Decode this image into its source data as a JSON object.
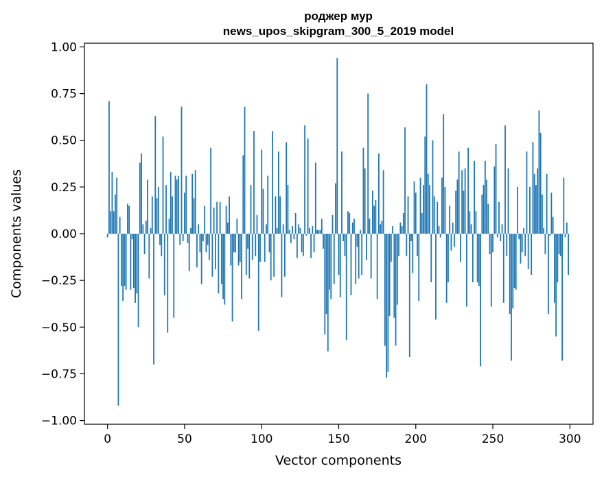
{
  "chart_data": {
    "type": "bar",
    "title": [
      "роджер мур",
      "news_upos_skipgram_300_5_2019 model"
    ],
    "xlabel": "Vector components",
    "ylabel": "Components values",
    "xlim": [
      -15,
      315
    ],
    "ylim": [
      -1.02,
      1.02
    ],
    "x_ticks": [
      0,
      50,
      100,
      150,
      200,
      250,
      300
    ],
    "x_tick_labels": [
      "0",
      "50",
      "100",
      "150",
      "200",
      "250",
      "300"
    ],
    "y_ticks": [
      1.0,
      0.75,
      0.5,
      0.25,
      0.0,
      -0.25,
      -0.5,
      -0.75,
      -1.0
    ],
    "y_tick_labels": [
      "1.00",
      "0.75",
      "0.50",
      "0.25",
      "0.00",
      "−0.25",
      "−0.50",
      "−0.75",
      "−1.00"
    ],
    "bar_color": "#1f77b4",
    "grid": false,
    "values": [
      -0.02,
      0.71,
      0.12,
      0.33,
      0.12,
      0.21,
      0.3,
      -0.92,
      0.09,
      -0.28,
      -0.36,
      -0.28,
      -0.3,
      0.16,
      0.15,
      -0.3,
      -0.03,
      -0.29,
      -0.37,
      -0.32,
      -0.5,
      0.38,
      0.43,
      0.05,
      -0.11,
      0.07,
      0.29,
      -0.24,
      0.03,
      0.2,
      -0.7,
      0.63,
      0.19,
      0.25,
      -0.06,
      -0.12,
      0.52,
      -0.33,
      0.26,
      -0.53,
      0.08,
      0.33,
      0.2,
      -0.45,
      0.31,
      0.29,
      0.31,
      -0.06,
      0.68,
      -0.04,
      0.22,
      0.31,
      -0.05,
      -0.2,
      0.03,
      0.32,
      0.19,
      0.34,
      -0.18,
      0.05,
      -0.1,
      -0.27,
      -0.04,
      0.15,
      -0.1,
      -0.06,
      -0.14,
      0.46,
      -0.23,
      0.14,
      -0.19,
      0.17,
      -0.32,
      0.17,
      -0.27,
      -0.35,
      -0.38,
      0.15,
      0.06,
      0.2,
      -0.17,
      -0.47,
      -0.1,
      -0.1,
      0.08,
      -0.17,
      -0.15,
      -0.35,
      0.42,
      0.68,
      -0.22,
      -0.08,
      -0.24,
      0.26,
      -0.14,
      0.55,
      -0.12,
      0.1,
      -0.52,
      -0.15,
      0.45,
      0.24,
      -0.15,
      0.05,
      0.31,
      -0.1,
      -0.25,
      0.55,
      -0.23,
      0.2,
      0.03,
      0.44,
      0.2,
      -0.34,
      0.05,
      -0.23,
      0.49,
      0.26,
      0.02,
      -0.05,
      0.04,
      -0.03,
      0.11,
      -0.13,
      0.05,
      0.03,
      -0.1,
      -0.12,
      0.58,
      -0.01,
      0.51,
      0.03,
      -0.13,
      0.04,
      -0.1,
      0.38,
      0.02,
      0.02,
      0.02,
      0.08,
      -0.08,
      -0.54,
      -0.43,
      -0.63,
      -0.3,
      -0.35,
      0.1,
      -0.27,
      0.27,
      0.94,
      -0.22,
      -0.34,
      0.44,
      -0.04,
      -0.12,
      -0.57,
      0.12,
      0.11,
      -0.33,
      0.06,
      0.08,
      -0.27,
      -0.07,
      -0.24,
      0.02,
      -0.22,
      0.46,
      0.35,
      -0.14,
      0.75,
      0.08,
      -0.24,
      0.23,
      0.15,
      0.18,
      -0.35,
      0.43,
      0.05,
      0.07,
      0.34,
      -0.6,
      -0.77,
      -0.74,
      -0.44,
      -0.15,
      0.04,
      -0.45,
      -0.6,
      -0.38,
      -0.12,
      0.06,
      0.04,
      0.11,
      0.57,
      -0.12,
      0.2,
      -0.66,
      -0.04,
      -0.21,
      0.28,
      0.22,
      -0.12,
      -0.36,
      0.3,
      0.11,
      0.26,
      0.52,
      0.8,
      0.32,
      0.26,
      -0.26,
      0.5,
      0.2,
      -0.46,
      0.17,
      0.04,
      -0.02,
      0.3,
      0.64,
      0.25,
      -0.37,
      -0.26,
      0.15,
      -0.09,
      0.06,
      -0.07,
      0.23,
      0.29,
      0.44,
      -0.15,
      0.34,
      0.23,
      0.35,
      -0.39,
      0.46,
      0.12,
      0.05,
      -0.26,
      0.39,
      0.12,
      -0.26,
      -0.28,
      -0.71,
      0.21,
      0.26,
      0.39,
      0.29,
      0.16,
      -0.11,
      -0.39,
      -0.1,
      0.36,
      0.48,
      -0.02,
      0.17,
      -0.04,
      0.05,
      -0.37,
      0.58,
      -0.12,
      0.35,
      -0.43,
      -0.68,
      -0.4,
      -0.29,
      -0.3,
      0.25,
      -0.03,
      -0.16,
      -0.1,
      0.03,
      -0.12,
      0.44,
      -0.19,
      0.25,
      -0.22,
      0.49,
      0.32,
      0.26,
      0.35,
      0.66,
      0.54,
      0.21,
      0.03,
      -0.11,
      0.32,
      -0.43,
      -0.01,
      0.22,
      0.09,
      -0.37,
      -0.55,
      -0.26,
      -0.11,
      -0.12,
      -0.68,
      0.3,
      -0.02,
      0.06,
      -0.22
    ]
  }
}
